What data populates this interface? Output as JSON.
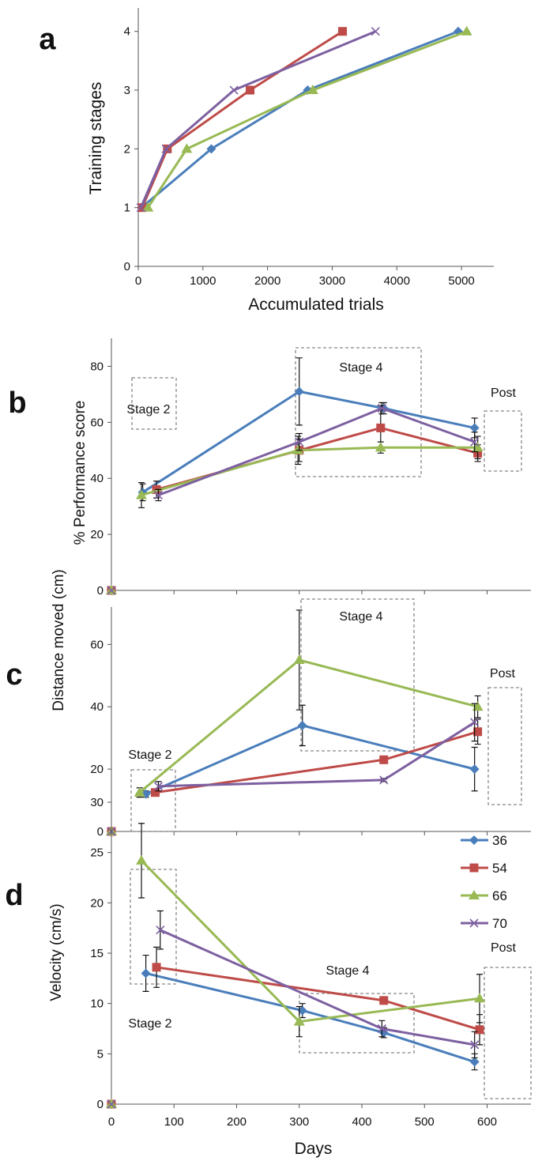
{
  "colors": {
    "s36": "#4a7ebb",
    "s54": "#be4b48",
    "s66": "#98b954",
    "s70": "#7d60a0",
    "box": "#888888"
  },
  "legend_position": "top-right (panel d)",
  "chart_data": [
    {
      "panel_label": "a",
      "type": "line",
      "xlabel": "Accumulated trials",
      "ylabel": "Training stages",
      "xlim": [
        0,
        5500
      ],
      "ylim": [
        0,
        4.4
      ],
      "xticks": [
        "0",
        "1000",
        "2000",
        "3000",
        "4000",
        "5000"
      ],
      "yticks": [
        "0",
        "1",
        "2",
        "3",
        "4"
      ],
      "series": [
        {
          "name": "36",
          "marker": "diamond",
          "x": [
            50,
            1130,
            2620,
            4950
          ],
          "y": [
            1,
            2,
            3,
            4
          ]
        },
        {
          "name": "54",
          "marker": "square",
          "x": [
            60,
            450,
            1730,
            3160
          ],
          "y": [
            1,
            2,
            3,
            4
          ]
        },
        {
          "name": "66",
          "marker": "triangle",
          "x": [
            150,
            750,
            2700,
            5080
          ],
          "y": [
            1,
            2,
            3,
            4
          ]
        },
        {
          "name": "70",
          "marker": "x",
          "x": [
            40,
            430,
            1480,
            3670
          ],
          "y": [
            1,
            2,
            3,
            4
          ]
        }
      ]
    },
    {
      "panel_label": "b",
      "type": "line",
      "ylabel": "% Performance score",
      "xlim": [
        0,
        670
      ],
      "ylim": [
        0,
        90
      ],
      "yticks": [
        "0",
        "20",
        "40",
        "60",
        "80"
      ],
      "box_labels": [
        "Stage 2",
        "Stage 4",
        "Post"
      ],
      "series": [
        {
          "name": "36",
          "marker": "diamond",
          "x": [
            50,
            300,
            435,
            580
          ],
          "y": [
            35,
            71,
            65,
            58
          ],
          "err": [
            3,
            12,
            2,
            3.5
          ]
        },
        {
          "name": "54",
          "marker": "square",
          "x": [
            72,
            300,
            430,
            585
          ],
          "y": [
            36,
            50,
            58,
            49
          ],
          "err": [
            3,
            4,
            8,
            3
          ]
        },
        {
          "name": "66",
          "marker": "triangle",
          "x": [
            48,
            298,
            430,
            585
          ],
          "y": [
            34,
            50,
            51,
            51
          ],
          "err": [
            4.5,
            5,
            2,
            4
          ]
        },
        {
          "name": "70",
          "marker": "x",
          "x": [
            75,
            300,
            432,
            580
          ],
          "y": [
            34,
            53,
            65,
            53
          ],
          "err": [
            2,
            3,
            2,
            3.5
          ]
        }
      ]
    },
    {
      "panel_label": "c",
      "type": "line",
      "ylabel": "Distance moved (cm)",
      "xlim": [
        0,
        670
      ],
      "ylim": [
        0,
        72
      ],
      "yticks": [
        "0",
        "20",
        "40",
        "60"
      ],
      "box_labels": [
        "Stage 2",
        "Stage 4",
        "Post"
      ],
      "series": [
        {
          "name": "36",
          "marker": "diamond",
          "x": [
            55,
            305,
            580
          ],
          "y": [
            12,
            34,
            20
          ],
          "err": [
            1,
            6.5,
            7
          ]
        },
        {
          "name": "54",
          "marker": "square",
          "x": [
            70,
            435,
            585
          ],
          "y": [
            12.5,
            23,
            32
          ],
          "err": [
            1,
            0.5,
            4
          ]
        },
        {
          "name": "66",
          "marker": "triangle",
          "x": [
            45,
            300,
            585
          ],
          "y": [
            12.5,
            55,
            40
          ],
          "err": [
            1.5,
            16,
            3.5
          ]
        },
        {
          "name": "70",
          "marker": "x",
          "x": [
            75,
            435,
            580
          ],
          "y": [
            14.5,
            16.5,
            35
          ],
          "err": [
            1.5,
            0.5,
            6
          ]
        }
      ]
    },
    {
      "panel_label": "d",
      "type": "line",
      "xlabel": "Days",
      "ylabel": "Velocity (cm/s)",
      "xlim": [
        0,
        670
      ],
      "ylim": [
        0,
        30
      ],
      "xticks": [
        "0",
        "100",
        "200",
        "300",
        "400",
        "500",
        "600"
      ],
      "yticks": [
        "0",
        "5",
        "10",
        "15",
        "20",
        "25",
        "30"
      ],
      "box_labels": [
        "Stage 2",
        "Stage 4",
        "Post"
      ],
      "series": [
        {
          "name": "36",
          "marker": "diamond",
          "x": [
            55,
            305,
            435,
            580
          ],
          "y": [
            13,
            9.3,
            7.1,
            4.2
          ],
          "err": [
            1.8,
            0.7,
            0.5,
            0.8
          ]
        },
        {
          "name": "54",
          "marker": "square",
          "x": [
            72,
            435,
            588
          ],
          "y": [
            13.6,
            10.3,
            7.4
          ],
          "err": [
            2,
            0.3,
            1.5
          ]
        },
        {
          "name": "66",
          "marker": "triangle",
          "x": [
            48,
            300,
            588
          ],
          "y": [
            24.2,
            8.2,
            10.5
          ],
          "err": [
            3.7,
            1.5,
            2.4
          ]
        },
        {
          "name": "70",
          "marker": "x",
          "x": [
            78,
            432,
            580
          ],
          "y": [
            17.3,
            7.5,
            5.9
          ],
          "err": [
            1.9,
            0.8,
            1.3
          ]
        }
      ]
    }
  ]
}
